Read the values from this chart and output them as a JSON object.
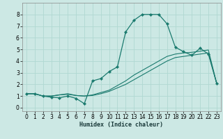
{
  "xlabel": "Humidex (Indice chaleur)",
  "ylabel": "",
  "bg_color": "#cce8e4",
  "line_color": "#1a7a6e",
  "grid_color": "#b0d8d2",
  "xlim": [
    -0.5,
    23.5
  ],
  "ylim": [
    -0.3,
    9.0
  ],
  "xticks": [
    0,
    1,
    2,
    3,
    4,
    5,
    6,
    7,
    8,
    9,
    10,
    11,
    12,
    13,
    14,
    15,
    16,
    17,
    18,
    19,
    20,
    21,
    22,
    23
  ],
  "yticks": [
    0,
    1,
    2,
    3,
    4,
    5,
    6,
    7,
    8
  ],
  "series": [
    {
      "x": [
        0,
        1,
        2,
        3,
        4,
        5,
        6,
        7,
        8,
        9,
        10,
        11,
        12,
        13,
        14,
        15,
        16,
        17,
        18,
        19,
        20,
        21,
        22,
        23
      ],
      "y": [
        1.2,
        1.2,
        1.0,
        0.9,
        0.85,
        1.0,
        0.8,
        0.35,
        2.3,
        2.5,
        3.1,
        3.5,
        6.5,
        7.5,
        8.0,
        8.0,
        8.0,
        7.2,
        5.2,
        4.8,
        4.5,
        5.1,
        4.6,
        2.1
      ],
      "marker": true
    },
    {
      "x": [
        0,
        1,
        2,
        3,
        4,
        5,
        6,
        7,
        8,
        9,
        10,
        11,
        12,
        13,
        14,
        15,
        16,
        17,
        18,
        19,
        20,
        21,
        22,
        23
      ],
      "y": [
        1.2,
        1.2,
        1.0,
        1.0,
        1.1,
        1.2,
        1.05,
        1.0,
        1.1,
        1.3,
        1.5,
        1.9,
        2.3,
        2.8,
        3.2,
        3.6,
        4.0,
        4.4,
        4.6,
        4.7,
        4.75,
        4.85,
        4.95,
        2.1
      ],
      "marker": false
    },
    {
      "x": [
        0,
        1,
        2,
        3,
        4,
        5,
        6,
        7,
        8,
        9,
        10,
        11,
        12,
        13,
        14,
        15,
        16,
        17,
        18,
        19,
        20,
        21,
        22,
        23
      ],
      "y": [
        1.2,
        1.2,
        1.0,
        1.0,
        1.1,
        1.15,
        1.05,
        1.0,
        1.05,
        1.2,
        1.4,
        1.7,
        2.0,
        2.4,
        2.8,
        3.2,
        3.6,
        4.0,
        4.3,
        4.4,
        4.5,
        4.6,
        4.7,
        2.1
      ],
      "marker": false
    }
  ],
  "xlabel_fontsize": 6,
  "tick_fontsize": 5.5,
  "xlabel_bold": true
}
